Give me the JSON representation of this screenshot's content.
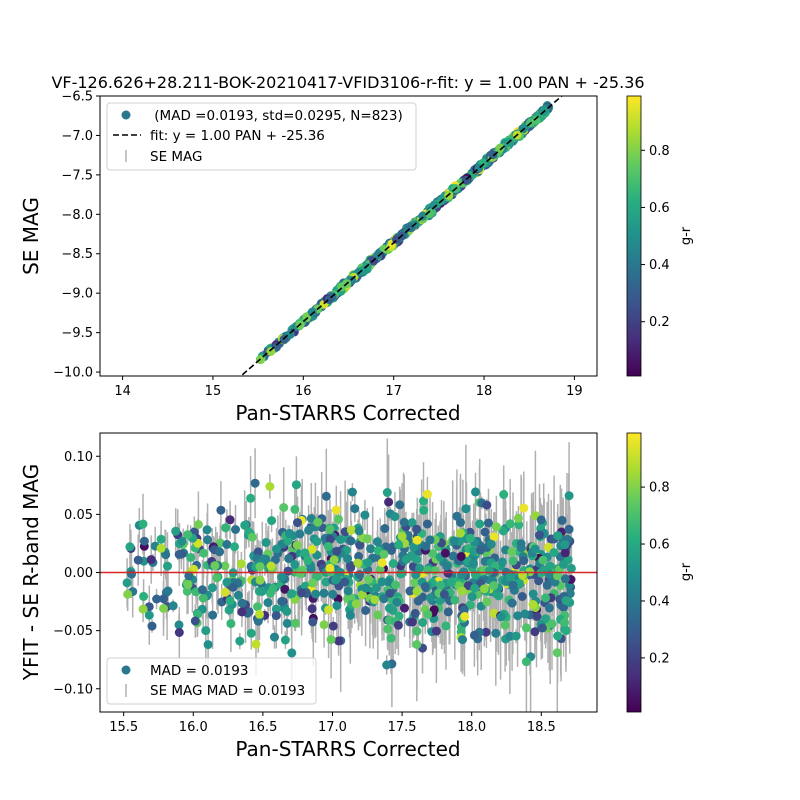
{
  "chart_data": [
    {
      "type": "scatter",
      "title": "VF-126.626+28.211-BOK-20210417-VFID3106-r-fit: y = 1.00 PAN + -25.36",
      "xlabel": "Pan-STARRS Corrected",
      "ylabel": "SE MAG",
      "xlim": [
        13.75,
        19.25
      ],
      "ylim": [
        -10.05,
        -6.5
      ],
      "y_inverted": true,
      "xticks": [
        14,
        15,
        16,
        17,
        18,
        19
      ],
      "yticks": [
        -6.5,
        -7.0,
        -7.5,
        -8.0,
        -8.5,
        -9.0,
        -9.5,
        -10.0
      ],
      "x_tick_labels": [
        "14",
        "15",
        "16",
        "17",
        "18",
        "19"
      ],
      "y_tick_labels": [
        "−6.5",
        "−7.0",
        "−7.5",
        "−8.0",
        "−8.5",
        "−9.0",
        "−9.5",
        "−10.0"
      ],
      "fit": {
        "slope": 1.0,
        "intercept": -25.36
      },
      "legend": {
        "placement": "top-left",
        "points_label": " (MAD =0.0193, std=0.0295, N=823)",
        "fit_label": "fit: y = 1.00 PAN + -25.36",
        "errorbar_label": "SE MAG"
      },
      "colorbar": {
        "label": "g-r",
        "range": [
          0.01,
          0.99
        ],
        "ticks": [
          0.2,
          0.4,
          0.6,
          0.8
        ],
        "tick_labels": [
          "0.2",
          "0.4",
          "0.6",
          "0.8"
        ]
      },
      "n_points": 823,
      "x_range_of_points": [
        15.45,
        18.72
      ],
      "scatter_mad": 0.0193,
      "scatter_std": 0.0295
    },
    {
      "type": "scatter",
      "xlabel": "Pan-STARRS Corrected",
      "ylabel": "YFIT - SE R-band MAG",
      "xlim": [
        15.33,
        18.9
      ],
      "ylim": [
        -0.12,
        0.12
      ],
      "xticks": [
        15.5,
        16.0,
        16.5,
        17.0,
        17.5,
        18.0,
        18.5
      ],
      "yticks": [
        0.1,
        0.05,
        0.0,
        -0.05,
        -0.1
      ],
      "x_tick_labels": [
        "15.5",
        "16.0",
        "16.5",
        "17.0",
        "17.5",
        "18.0",
        "18.5"
      ],
      "y_tick_labels": [
        "0.10",
        "0.05",
        "0.00",
        "−0.05",
        "−0.10"
      ],
      "zero_line": 0.0,
      "legend": {
        "placement": "bottom-left",
        "points_label": "MAD = 0.0193",
        "errorbar_label": "SE MAG MAD = 0.0193"
      },
      "colorbar": {
        "label": "g-r",
        "range": [
          0.01,
          0.99
        ],
        "ticks": [
          0.2,
          0.4,
          0.6,
          0.8
        ],
        "tick_labels": [
          "0.2",
          "0.4",
          "0.6",
          "0.8"
        ]
      },
      "n_points": 823,
      "residual_spread_sigma": 0.0295,
      "error_bar_halfwidth_range": [
        0.005,
        0.045
      ]
    }
  ],
  "colors": {
    "fit_line": "#000000",
    "zero_line": "#d62728",
    "error_bar": "#b0b0b0",
    "legend_marker": "#2a788e"
  }
}
